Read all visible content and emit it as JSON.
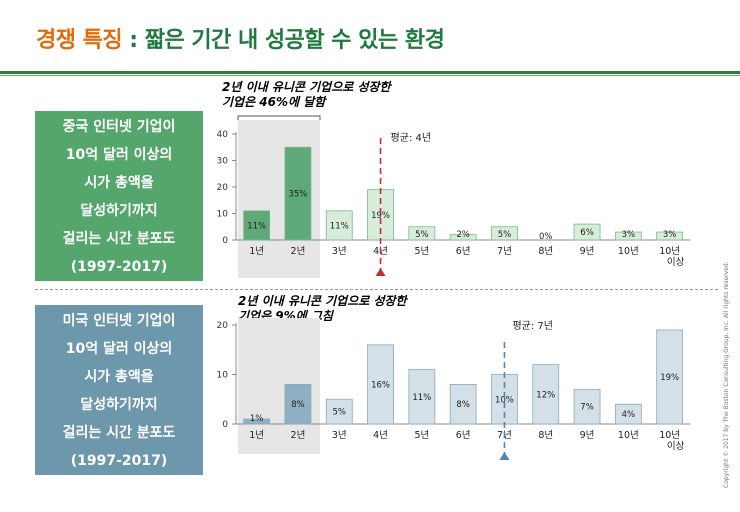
{
  "title": {
    "accent": "경쟁 특징",
    "separator": " : ",
    "rest": "짧은 기간 내 성공할 수 있는 환경"
  },
  "china_box": {
    "lines": [
      "중국 인터넷 기업이",
      "10억 달러 이상의",
      "시가 총액을",
      "달성하기까지",
      "걸리는 시간 분포도",
      "(1997-2017)"
    ]
  },
  "us_box": {
    "lines": [
      "미국 인터넷 기업이",
      "10억 달러 이상의",
      "시가 총액을",
      "달성하기까지",
      "걸리는 시간 분포도",
      "(1997-2017)"
    ]
  },
  "copyright": "Copyright © 2017 by The Boston Consulting Group, Inc. All rights reserved.",
  "chart_data": [
    {
      "type": "bar",
      "categories": [
        "1년",
        "2년",
        "3년",
        "4년",
        "5년",
        "6년",
        "7년",
        "8년",
        "9년",
        "10년",
        "10년 이상"
      ],
      "values": [
        11,
        35,
        11,
        19,
        5,
        2,
        5,
        0,
        6,
        3,
        3
      ],
      "data_labels": [
        "11%",
        "35%",
        "11%",
        "19%",
        "5%",
        "2%",
        "5%",
        "0%",
        "6%",
        "3%",
        "3%"
      ],
      "ylim": [
        0,
        40
      ],
      "yticks": [
        0,
        10,
        20,
        30,
        40
      ],
      "mean_label": "평균: 4년",
      "mean_value": 4,
      "callout": [
        "2년 이내 유니콘 기업으로 성장한",
        "기업은 46%에 달함"
      ],
      "colors": {
        "highlight": "#5fa878",
        "normal": "#d7ecd9",
        "edge": "#79b98c",
        "mean_line": "#c0302f"
      }
    },
    {
      "type": "bar",
      "categories": [
        "1년",
        "2년",
        "3년",
        "4년",
        "5년",
        "6년",
        "7년",
        "8년",
        "9년",
        "10년",
        "10년 이상"
      ],
      "values": [
        1,
        8,
        5,
        16,
        11,
        8,
        10,
        12,
        7,
        4,
        19
      ],
      "data_labels": [
        "1%",
        "8%",
        "5%",
        "16%",
        "11%",
        "8%",
        "10%",
        "12%",
        "7%",
        "4%",
        "19%"
      ],
      "ylim": [
        0,
        20
      ],
      "yticks": [
        0,
        10,
        20
      ],
      "mean_label": "평균: 7년",
      "mean_value": 7,
      "callout": [
        "2년 이내 유니콘 기업으로 성장한",
        "기업은 9%에 그침"
      ],
      "colors": {
        "highlight": "#8fb0c3",
        "normal": "#d3e0e8",
        "edge": "#8fa9b9",
        "mean_line": "#4a88ad"
      }
    }
  ]
}
